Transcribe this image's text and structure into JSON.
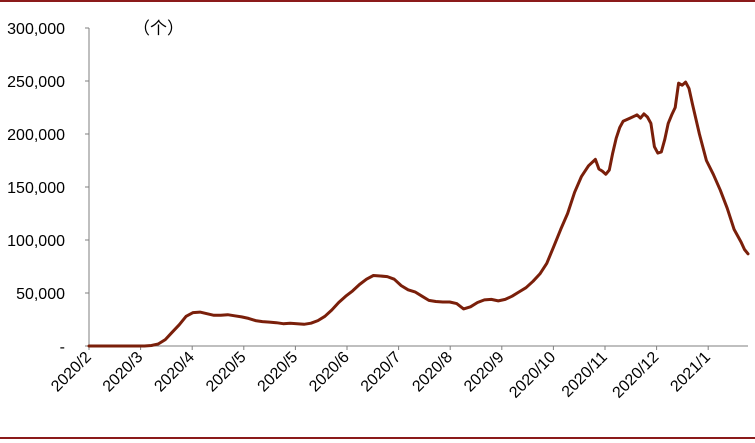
{
  "chart_data": {
    "type": "line",
    "unit_label": "（个）",
    "ylim": [
      0,
      300000
    ],
    "y_ticks": [
      0,
      50000,
      100000,
      150000,
      200000,
      250000,
      300000
    ],
    "y_tick_labels": [
      "-",
      "50,000",
      "100,000",
      "150,000",
      "200,000",
      "250,000",
      "300,000"
    ],
    "x_tick_labels": [
      "2020/2",
      "2020/3",
      "2020/4",
      "2020/5",
      "2020/5",
      "2020/6",
      "2020/7",
      "2020/8",
      "2020/9",
      "2020/10",
      "2020/11",
      "2020/12",
      "2021/1"
    ],
    "grid": false,
    "line_color": "#7a1f0a",
    "frame_color": "#8b1a1a",
    "series": [
      {
        "values": [
          [
            0,
            0
          ],
          [
            4,
            0
          ],
          [
            8,
            0
          ],
          [
            9,
            500
          ],
          [
            10,
            2000
          ],
          [
            11,
            6000
          ],
          [
            12,
            13000
          ],
          [
            13,
            20000
          ],
          [
            14,
            28000
          ],
          [
            15,
            31500
          ],
          [
            16,
            32000
          ],
          [
            17,
            30500
          ],
          [
            18,
            29000
          ],
          [
            19,
            29000
          ],
          [
            20,
            29500
          ],
          [
            21,
            28500
          ],
          [
            22,
            27500
          ],
          [
            23,
            26000
          ],
          [
            24,
            24000
          ],
          [
            25,
            23000
          ],
          [
            26,
            22500
          ],
          [
            27,
            22000
          ],
          [
            28,
            21000
          ],
          [
            29,
            21500
          ],
          [
            30,
            21000
          ],
          [
            31,
            20500
          ],
          [
            32,
            21500
          ],
          [
            33,
            24000
          ],
          [
            34,
            28000
          ],
          [
            35,
            34000
          ],
          [
            36,
            41000
          ],
          [
            37,
            47000
          ],
          [
            38,
            52000
          ],
          [
            39,
            58000
          ],
          [
            40,
            63000
          ],
          [
            41,
            66500
          ],
          [
            42,
            66000
          ],
          [
            43,
            65500
          ],
          [
            44,
            63000
          ],
          [
            45,
            57000
          ],
          [
            46,
            53000
          ],
          [
            47,
            51000
          ],
          [
            48,
            47000
          ],
          [
            49,
            43000
          ],
          [
            50,
            42000
          ],
          [
            51,
            41500
          ],
          [
            52,
            41500
          ],
          [
            53,
            40000
          ],
          [
            54,
            35000
          ],
          [
            55,
            37000
          ],
          [
            56,
            41000
          ],
          [
            57,
            43500
          ],
          [
            58,
            44000
          ],
          [
            59,
            42500
          ],
          [
            60,
            44000
          ],
          [
            61,
            47000
          ],
          [
            62,
            51000
          ],
          [
            63,
            55000
          ],
          [
            64,
            61000
          ],
          [
            65,
            68000
          ],
          [
            66,
            78000
          ],
          [
            67,
            94000
          ],
          [
            68,
            110000
          ],
          [
            69,
            125000
          ],
          [
            70,
            145000
          ],
          [
            71,
            160000
          ],
          [
            72,
            170000
          ],
          [
            73,
            176000
          ],
          [
            73.5,
            167000
          ],
          [
            74,
            165000
          ],
          [
            74.5,
            162000
          ],
          [
            75,
            166000
          ],
          [
            75.5,
            182000
          ],
          [
            76,
            196000
          ],
          [
            76.5,
            206000
          ],
          [
            77,
            212000
          ],
          [
            78,
            215000
          ],
          [
            79,
            218000
          ],
          [
            79.5,
            215000
          ],
          [
            80,
            219000
          ],
          [
            80.5,
            216000
          ],
          [
            81,
            210000
          ],
          [
            81.5,
            188000
          ],
          [
            82,
            182000
          ],
          [
            82.5,
            183000
          ],
          [
            83,
            195000
          ],
          [
            83.5,
            210000
          ],
          [
            84,
            218000
          ],
          [
            84.5,
            225000
          ],
          [
            85,
            248000
          ],
          [
            85.5,
            246000
          ],
          [
            86,
            249000
          ],
          [
            86.5,
            243000
          ],
          [
            87,
            228000
          ],
          [
            88,
            200000
          ],
          [
            89,
            175000
          ],
          [
            90,
            162000
          ],
          [
            91,
            147000
          ],
          [
            92,
            130000
          ],
          [
            93,
            110000
          ],
          [
            94,
            98000
          ],
          [
            94.5,
            91000
          ],
          [
            95,
            87000
          ]
        ]
      }
    ]
  }
}
